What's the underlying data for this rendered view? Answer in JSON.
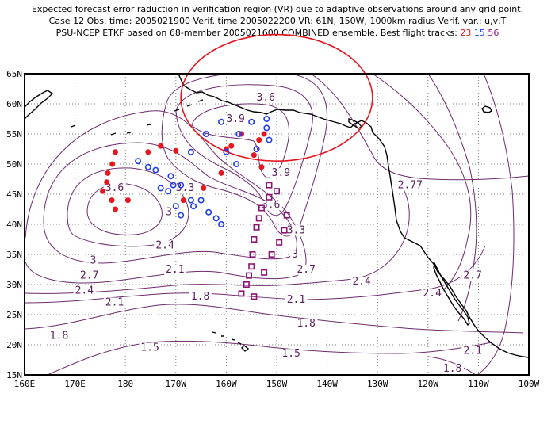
{
  "title": {
    "line1": "Expected forecast error raduction in verification region (VR) due to adaptive observations around any grid point.",
    "line2": "Case 12   Obs. time: 2005021900   Verif. time 2005022200   VR: 61N, 150W, 1000km radius   Verif. var.: u,v,T",
    "line3_prefix": "PSU-NCEP ETKF based on 68-member 2005021600 COMBINED ensemble.   Best flight tracks:",
    "track_a": "23",
    "track_b": "15",
    "track_c": "56"
  },
  "colors": {
    "track_a": "#e8141e",
    "track_b": "#1e3cf0",
    "track_c": "#8c1478",
    "contour": "#6e2a6e",
    "verification_circle": "#e8141e",
    "coast": "#000000",
    "grid": "#808080"
  },
  "axes": {
    "x_ticks": [
      "160E",
      "170E",
      "180",
      "170W",
      "160W",
      "150W",
      "140W",
      "130W",
      "120W",
      "110W",
      "100W"
    ],
    "y_ticks": [
      "65N",
      "60N",
      "55N",
      "50N",
      "45N",
      "40N",
      "35N",
      "30N",
      "25N",
      "20N",
      "15N"
    ],
    "lon_range": [
      160,
      260
    ],
    "lat_range": [
      15,
      65
    ]
  },
  "contour_labels": [
    {
      "text": "3.6",
      "lon": 206,
      "lat": 60.5
    },
    {
      "text": "3.9",
      "lon": 200,
      "lat": 57.0
    },
    {
      "text": "3.9",
      "lon": 209,
      "lat": 48.0
    },
    {
      "text": "3.6",
      "lon": 207,
      "lat": 42.7
    },
    {
      "text": "3.6",
      "lon": 176,
      "lat": 45.5
    },
    {
      "text": "3.3",
      "lon": 190,
      "lat": 45.5
    },
    {
      "text": "3",
      "lon": 188,
      "lat": 41.5
    },
    {
      "text": "2.4",
      "lon": 186,
      "lat": 36.0
    },
    {
      "text": "3.3",
      "lon": 212,
      "lat": 38.5
    },
    {
      "text": "3",
      "lon": 213,
      "lat": 34.5
    },
    {
      "text": "2.7",
      "lon": 214,
      "lat": 32.0
    },
    {
      "text": "3",
      "lon": 173,
      "lat": 33.5
    },
    {
      "text": "2.1",
      "lon": 188,
      "lat": 32.0
    },
    {
      "text": "2.7",
      "lon": 171,
      "lat": 31.0
    },
    {
      "text": "2.4",
      "lon": 170,
      "lat": 28.5
    },
    {
      "text": "2.1",
      "lon": 176,
      "lat": 26.5
    },
    {
      "text": "1.8",
      "lon": 193,
      "lat": 27.5
    },
    {
      "text": "2.4",
      "lon": 225,
      "lat": 30.0
    },
    {
      "text": "2.1",
      "lon": 212,
      "lat": 27.0
    },
    {
      "text": "1.8",
      "lon": 214,
      "lat": 23.0
    },
    {
      "text": "1.8",
      "lon": 165,
      "lat": 21.0
    },
    {
      "text": "1.5",
      "lon": 183,
      "lat": 19.0
    },
    {
      "text": "1.5",
      "lon": 211,
      "lat": 18.0
    },
    {
      "text": "2.77",
      "lon": 234,
      "lat": 46.0
    },
    {
      "text": "2.7",
      "lon": 247,
      "lat": 31.0
    },
    {
      "text": "2.4",
      "lon": 239,
      "lat": 28.0
    },
    {
      "text": "2.1",
      "lon": 247,
      "lat": 18.5
    },
    {
      "text": "1.8",
      "lon": 243,
      "lat": 15.5
    }
  ],
  "verification_region": {
    "center_lon": 210,
    "center_lat": 61,
    "radius_lon": 19,
    "radius_lat": 10.5
  },
  "flight_tracks": {
    "track_23_red": [
      [
        178,
        52
      ],
      [
        177.4,
        50
      ],
      [
        176.5,
        48.5
      ],
      [
        176.3,
        47
      ],
      [
        175.5,
        45.5
      ],
      [
        177.3,
        44
      ],
      [
        178,
        42.5
      ],
      [
        180.5,
        44
      ],
      [
        184.5,
        52
      ],
      [
        187,
        53
      ],
      [
        190,
        52.2
      ],
      [
        191.5,
        44
      ],
      [
        195.5,
        46
      ],
      [
        199,
        48.5
      ],
      [
        200,
        52.5
      ],
      [
        201,
        53
      ],
      [
        203,
        55
      ],
      [
        205.5,
        51.5
      ],
      [
        207,
        49.5
      ],
      [
        206.5,
        54
      ],
      [
        207.5,
        55
      ]
    ],
    "track_15_blue": [
      [
        182.5,
        50.5
      ],
      [
        184.5,
        49.5
      ],
      [
        186,
        49
      ],
      [
        189,
        48
      ],
      [
        191,
        46.5
      ],
      [
        193,
        44
      ],
      [
        196.5,
        42
      ],
      [
        199,
        40
      ],
      [
        198,
        41
      ],
      [
        195,
        44
      ],
      [
        193.5,
        43
      ],
      [
        191,
        41.5
      ],
      [
        190,
        43
      ],
      [
        188.5,
        45.5
      ],
      [
        187,
        46
      ],
      [
        189.5,
        46.5
      ],
      [
        193,
        52
      ],
      [
        196,
        55
      ],
      [
        199,
        57
      ],
      [
        202.5,
        55
      ],
      [
        205,
        57
      ],
      [
        208,
        57.5
      ],
      [
        208,
        56
      ],
      [
        208.5,
        54
      ],
      [
        206,
        52.5
      ],
      [
        202,
        50
      ],
      [
        200,
        52
      ]
    ],
    "track_56_purple": [
      [
        208.5,
        46.5
      ],
      [
        208.5,
        44.5
      ],
      [
        210,
        45.5
      ],
      [
        207,
        42.7
      ],
      [
        206.5,
        41
      ],
      [
        206,
        39.5
      ],
      [
        205.5,
        37.5
      ],
      [
        205.2,
        35
      ],
      [
        205,
        33
      ],
      [
        204.5,
        31.5
      ],
      [
        204,
        30
      ],
      [
        203,
        28.5
      ],
      [
        205.5,
        28
      ],
      [
        207.5,
        32
      ],
      [
        209,
        35
      ],
      [
        210.5,
        37
      ],
      [
        211.5,
        39
      ],
      [
        212,
        41.5
      ]
    ]
  }
}
